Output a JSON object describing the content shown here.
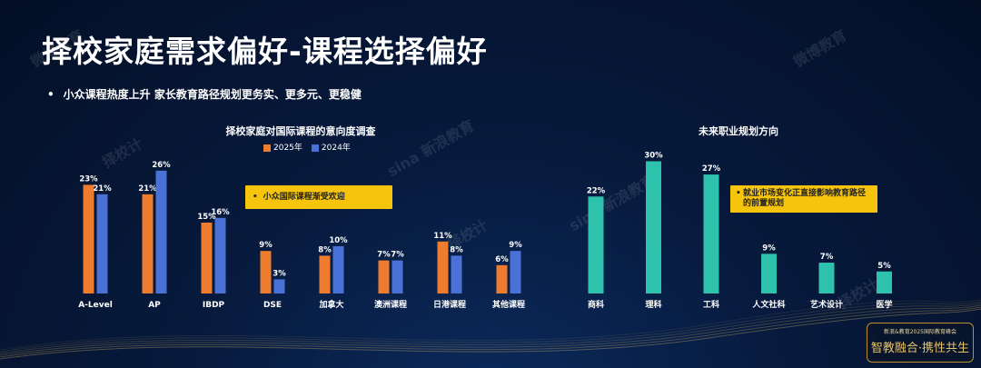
{
  "header": {
    "title": "择校家庭需求偏好-课程选择偏好",
    "bullet": "小众课程热度上升 家长教育路径规划更务实、更多元、更稳健"
  },
  "colors": {
    "orange": "#ee7c2e",
    "blue": "#4a72d6",
    "teal": "#2ec2ad",
    "callout": "#f6c40d"
  },
  "chart_data": [
    {
      "type": "bar",
      "title": "择校家庭对国际课程的意向度调查",
      "categories": [
        "A-Level",
        "AP",
        "IBDP",
        "DSE",
        "加拿大",
        "澳洲课程",
        "日港课程",
        "其他课程"
      ],
      "series": [
        {
          "name": "2025年",
          "values": [
            23,
            21,
            15,
            9,
            8,
            7,
            11,
            6
          ]
        },
        {
          "name": "2024年",
          "values": [
            21,
            26,
            16,
            3,
            10,
            7,
            8,
            9
          ]
        }
      ],
      "value_suffix": "%",
      "legend": "top",
      "callout": "小众国际课程渐受欢迎"
    },
    {
      "type": "bar",
      "title": "未来职业规划方向",
      "categories": [
        "商科",
        "理科",
        "工科",
        "人文社科",
        "艺术设计",
        "医学"
      ],
      "values": [
        22,
        30,
        27,
        9,
        7,
        5
      ],
      "value_suffix": "%",
      "callout": "就业市场变化正直接影响教育路径的前置规划"
    }
  ],
  "watermarks": [
    "微博教育",
    "sina 新浪教育",
    "择校计"
  ],
  "logo": {
    "line1": "新浪&教育2025国际教育峰会",
    "line2": "智教融合·携性共生"
  }
}
